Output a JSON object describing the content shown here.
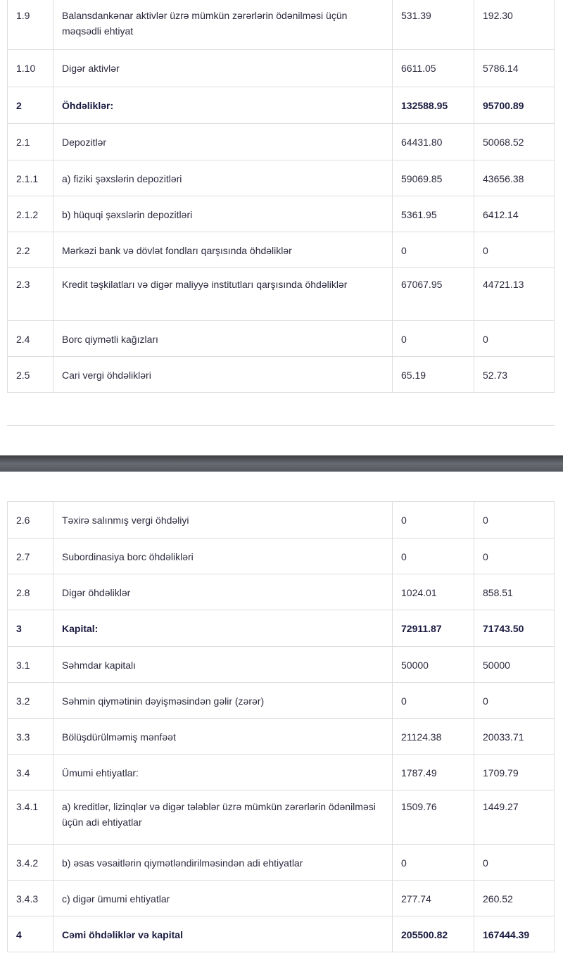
{
  "table1": [
    {
      "code": "1.9",
      "name": "Balansdankənar aktivlər üzrə mümkün zərərlərin ödənilməsi üçün məqsədli ehtiyat",
      "v1": "531.39",
      "v2": "192.30",
      "bold": false,
      "h": 74
    },
    {
      "code": "1.10",
      "name": "Digər aktivlər",
      "v1": "6611.05",
      "v2": "5786.14",
      "bold": false,
      "h": 53
    },
    {
      "code": "2",
      "name": "Öhdəliklər:",
      "v1": "132588.95",
      "v2": "95700.89",
      "bold": true,
      "h": 52
    },
    {
      "code": "2.1",
      "name": "Depozitlər",
      "v1": "64431.80",
      "v2": "50068.52",
      "bold": false,
      "h": 52
    },
    {
      "code": "2.1.1",
      "name": "a) fiziki şəxslərin depozitləri",
      "v1": "59069.85",
      "v2": "43656.38",
      "bold": false,
      "h": 51
    },
    {
      "code": "2.1.2",
      "name": "b) hüquqi şəxslərin depozitləri",
      "v1": "5361.95",
      "v2": "6412.14",
      "bold": false,
      "h": 51
    },
    {
      "code": "2.2",
      "name": "Mərkəzi bank və dövlət fondları qarşısında öhdəliklər",
      "v1": "0",
      "v2": "0",
      "bold": false,
      "h": 51
    },
    {
      "code": "2.3",
      "name": "Kredit təşkilatları və digər maliyyə institutları qarşısında öhdəliklər",
      "v1": "67067.95",
      "v2": "44721.13",
      "bold": false,
      "h": 75
    },
    {
      "code": "2.4",
      "name": "Borc qiymətli kağızları",
      "v1": "0",
      "v2": "0",
      "bold": false,
      "h": 51
    },
    {
      "code": "2.5",
      "name": "Cari vergi öhdəlikləri",
      "v1": "65.19",
      "v2": "52.73",
      "bold": false,
      "h": 51
    }
  ],
  "table2": [
    {
      "code": "2.6",
      "name": "Təxirə salınmış vergi öhdəliyi",
      "v1": "0",
      "v2": "0",
      "bold": false,
      "h": 52
    },
    {
      "code": "2.7",
      "name": "Subordinasiya borc öhdəlikləri",
      "v1": "0",
      "v2": "0",
      "bold": false,
      "h": 51
    },
    {
      "code": "2.8",
      "name": "Digər öhdəliklər",
      "v1": "1024.01",
      "v2": "858.51",
      "bold": false,
      "h": 51
    },
    {
      "code": "3",
      "name": "Kapital:",
      "v1": "72911.87",
      "v2": "71743.50",
      "bold": true,
      "h": 52
    },
    {
      "code": "3.1",
      "name": "Səhmdar kapitalı",
      "v1": "50000",
      "v2": "50000",
      "bold": false,
      "h": 51
    },
    {
      "code": "3.2",
      "name": "Səhmin qiymətinin dəyişməsindən gəlir (zərər)",
      "v1": "0",
      "v2": "0",
      "bold": false,
      "h": 51
    },
    {
      "code": "3.3",
      "name": "Bölüşdürülməmiş mənfəət",
      "v1": "21124.38",
      "v2": "20033.71",
      "bold": false,
      "h": 51
    },
    {
      "code": "3.4",
      "name": "Ümumi ehtiyatlar:",
      "v1": "1787.49",
      "v2": "1709.79",
      "bold": false,
      "h": 51
    },
    {
      "code": "3.4.1",
      "name": "a) kreditlər, lizinqlər və digər tələblər üzrə mümkün zərərlərin ödənilməsi üçün adi ehtiyatlar",
      "v1": "1509.76",
      "v2": "1449.27",
      "bold": false,
      "h": 77
    },
    {
      "code": "3.4.2",
      "name": "b) əsas vəsaitlərin qiymətləndirilməsindən adi ehtiyatlar",
      "v1": "0",
      "v2": "0",
      "bold": false,
      "h": 51
    },
    {
      "code": "3.4.3",
      "name": "c) digər ümumi ehtiyatlar",
      "v1": "277.74",
      "v2": "260.52",
      "bold": false,
      "h": 51
    },
    {
      "code": "4",
      "name": "Cəmi öhdəliklər və kapital",
      "v1": "205500.82",
      "v2": "167444.39",
      "bold": true,
      "h": 51
    }
  ]
}
